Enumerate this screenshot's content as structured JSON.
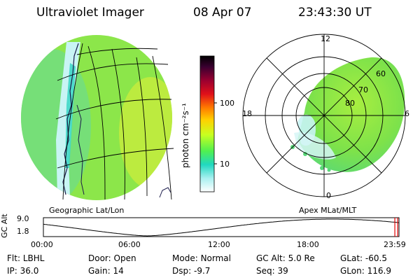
{
  "header": {
    "instrument": "Ultraviolet Imager",
    "date": "08 Apr 07",
    "time": "23:43:30 UT"
  },
  "colorbar": {
    "label": "photon cm⁻²s⁻¹",
    "ticks": [
      "100",
      "10"
    ],
    "scale": "log",
    "colors": [
      "#000000",
      "#3a0030",
      "#9a0030",
      "#e0101a",
      "#ff7a00",
      "#ffd000",
      "#c8ff20",
      "#50f050",
      "#20d8c0",
      "#a8f0f0",
      "#ffffff"
    ]
  },
  "left_panel": {
    "caption": "Geographic Lat/Lon",
    "colors": {
      "main": "#8ce64a",
      "cyan": "#3cd8c4",
      "pale": "#c8f4f4",
      "yellow": "#d8f040"
    }
  },
  "right_panel": {
    "caption": "Apex MLat/MLT",
    "mlt_labels": [
      "12",
      "18",
      "6",
      "0"
    ],
    "mlat_labels": [
      "60",
      "70",
      "80"
    ]
  },
  "timeline": {
    "ylabel": "GC Alt",
    "yticks": [
      "9.0",
      "1.8"
    ],
    "xticks": [
      "00:00",
      "06:00",
      "12:00",
      "18:00",
      "23:59"
    ],
    "x_range_hours": [
      0,
      24
    ],
    "y_range_re": [
      1.8,
      9.0
    ],
    "current_marker_hours": 23.72,
    "marker_color": "#e00000"
  },
  "info": {
    "row1": [
      {
        "label": "Flt:",
        "value": "LBHL"
      },
      {
        "label": "Door:",
        "value": "Open"
      },
      {
        "label": "Mode:",
        "value": "Normal"
      },
      {
        "label": "GC Alt:",
        "value": "5.0 Re"
      },
      {
        "label": "GLat:",
        "value": "-60.5"
      }
    ],
    "row2": [
      {
        "label": "IP:",
        "value": "36.0"
      },
      {
        "label": "Gain:",
        "value": "14"
      },
      {
        "label": "Dsp:",
        "value": "-9.7"
      },
      {
        "label": "Seq:",
        "value": "39"
      },
      {
        "label": "GLon:",
        "value": "116.9"
      }
    ]
  }
}
